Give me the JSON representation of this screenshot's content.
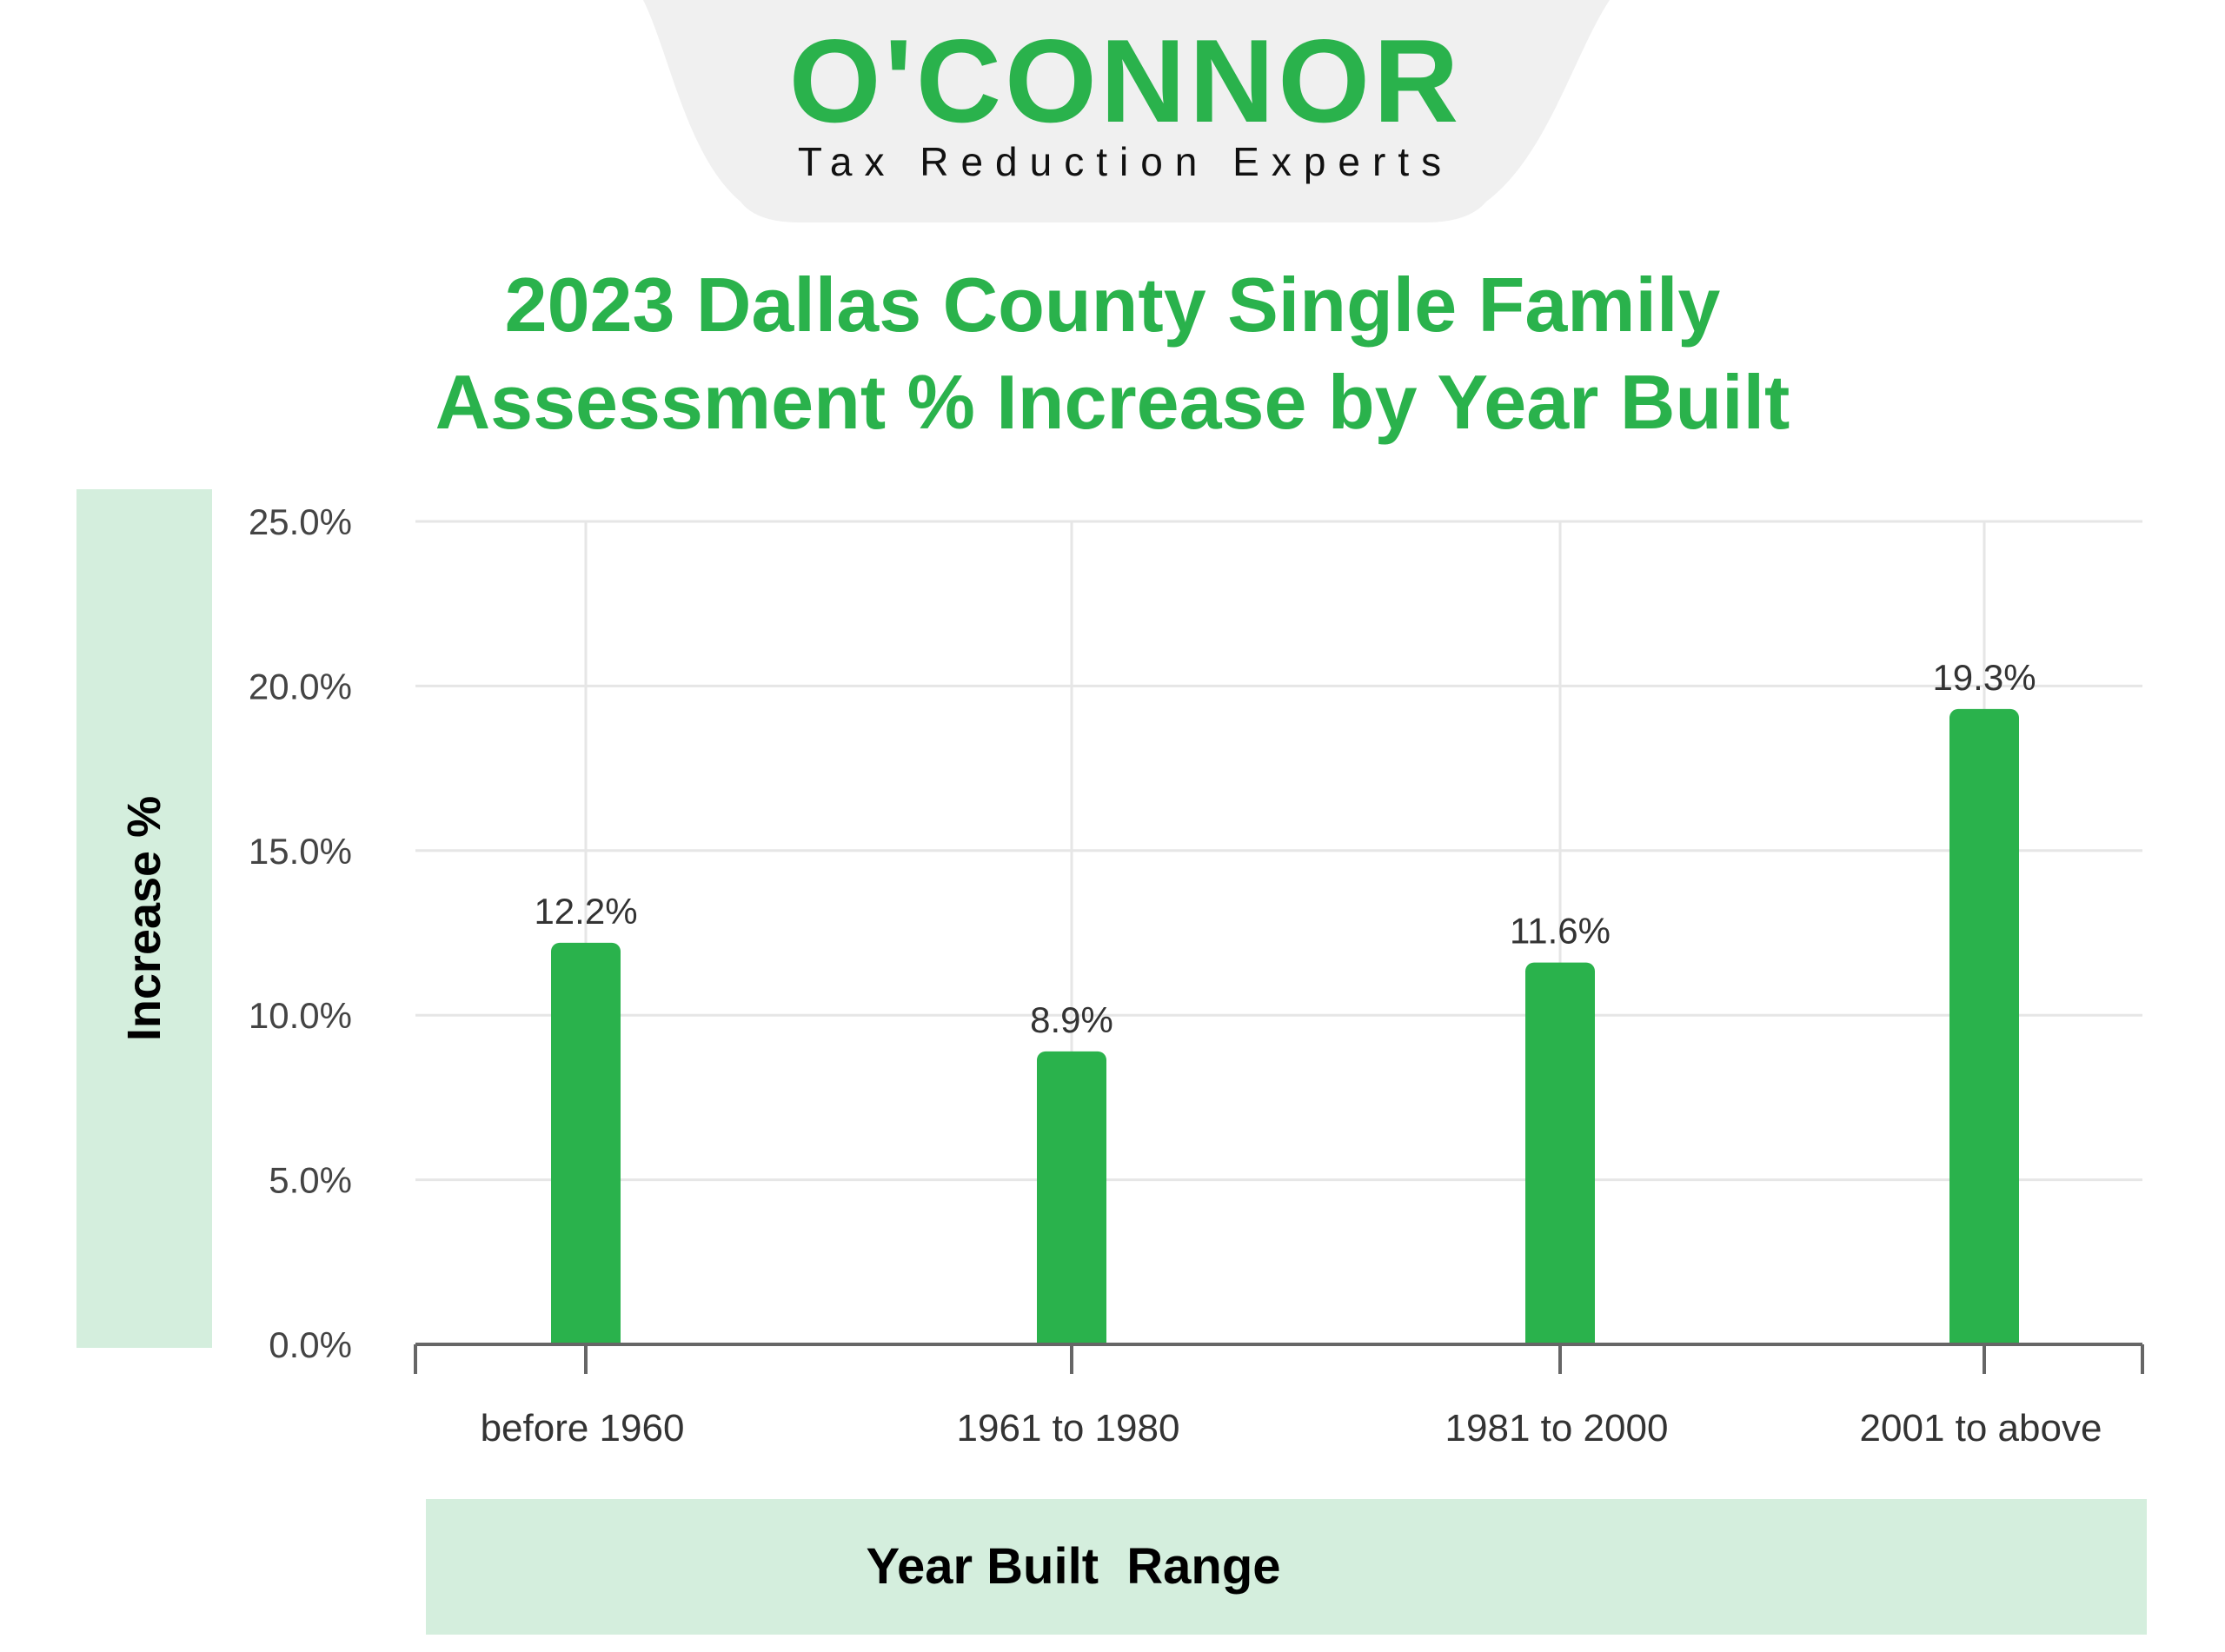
{
  "logo": {
    "name": "O'CONNOR",
    "tagline": "Tax Reduction Experts"
  },
  "colors": {
    "brand_green": "#2ab24c",
    "panel_green": "#d4eedd",
    "logo_tab_gray": "#f0f0f0",
    "gridline": "#e6e6e6",
    "axis": "#666666"
  },
  "chart_data": {
    "type": "bar",
    "title": "2023 Dallas County Single Family\nAssessment % Increase by Year Built",
    "xlabel": "Year Built  Range",
    "ylabel": "Increase %",
    "categories": [
      "before 1960",
      "1961 to 1980",
      "1981 to 2000",
      "2001 to above"
    ],
    "values": [
      12.2,
      8.9,
      11.6,
      19.3
    ],
    "value_labels": [
      "12.2%",
      "8.9%",
      "11.6%",
      "19.3%"
    ],
    "ylim": [
      0,
      25
    ],
    "yticks": [
      0,
      5,
      10,
      15,
      20,
      25
    ],
    "ytick_labels": [
      "0.0%",
      "5.0%",
      "10.0%",
      "15.0%",
      "20.0%",
      "25.0%"
    ],
    "grid": true,
    "legend": "none"
  }
}
